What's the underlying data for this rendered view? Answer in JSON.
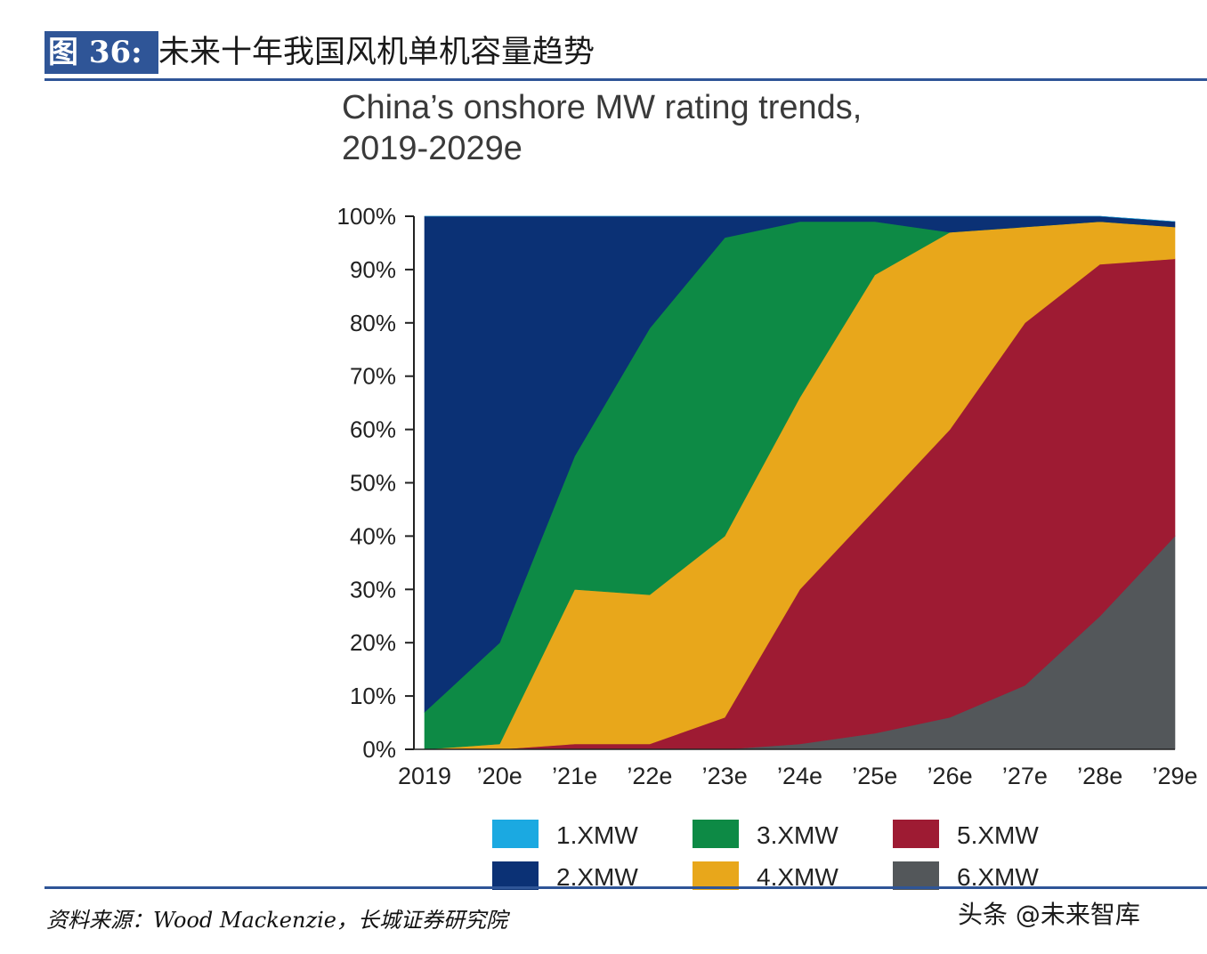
{
  "figure": {
    "label": "图 36:",
    "title": "未来十年我国风机单机容量趋势"
  },
  "source_note": "资料来源：Wood Mackenzie，长城证券研究院",
  "watermark": "头条 @未来智库",
  "chart_data": {
    "type": "area",
    "stacked": true,
    "title_lines": [
      "China’s onshore MW rating trends,",
      "2019-2029e"
    ],
    "categories": [
      "2019",
      "’20e",
      "’21e",
      "’22e",
      "’23e",
      "’24e",
      "’25e",
      "’26e",
      "’27e",
      "’28e",
      "’29e"
    ],
    "ylim": [
      0,
      100
    ],
    "yticks": [
      "0%",
      "10%",
      "20%",
      "30%",
      "40%",
      "50%",
      "60%",
      "70%",
      "80%",
      "90%",
      "100%"
    ],
    "series": [
      {
        "name": "6.XMW",
        "color": "#53575a",
        "values": [
          0,
          0,
          0,
          0,
          0,
          1,
          3,
          6,
          12,
          25,
          40
        ]
      },
      {
        "name": "5.XMW",
        "color": "#9e1b33",
        "values": [
          0,
          0,
          1,
          1,
          6,
          29,
          42,
          54,
          68,
          66,
          52
        ]
      },
      {
        "name": "4.XMW",
        "color": "#e8a71b",
        "values": [
          0,
          1,
          29,
          28,
          34,
          36,
          44,
          37,
          18,
          8,
          6
        ]
      },
      {
        "name": "3.XMW",
        "color": "#0d8a45",
        "values": [
          7,
          19,
          25,
          50,
          56,
          33,
          10,
          0,
          0,
          0,
          0
        ]
      },
      {
        "name": "2.XMW",
        "color": "#0b3175",
        "values": [
          93,
          80,
          45,
          21,
          4,
          1,
          1,
          3,
          2,
          1,
          1
        ]
      },
      {
        "name": "1.XMW",
        "color": "#1ba9e1",
        "values": [
          0,
          0,
          0,
          0,
          0,
          0,
          0,
          0,
          0,
          0,
          0
        ]
      }
    ],
    "legend": {
      "position": "bottom",
      "entries": [
        {
          "name": "1.XMW",
          "color": "#1ba9e1"
        },
        {
          "name": "3.XMW",
          "color": "#0d8a45"
        },
        {
          "name": "5.XMW",
          "color": "#9e1b33"
        },
        {
          "name": "2.XMW",
          "color": "#0b3175"
        },
        {
          "name": "4.XMW",
          "color": "#e8a71b"
        },
        {
          "name": "6.XMW",
          "color": "#53575a"
        }
      ]
    }
  }
}
